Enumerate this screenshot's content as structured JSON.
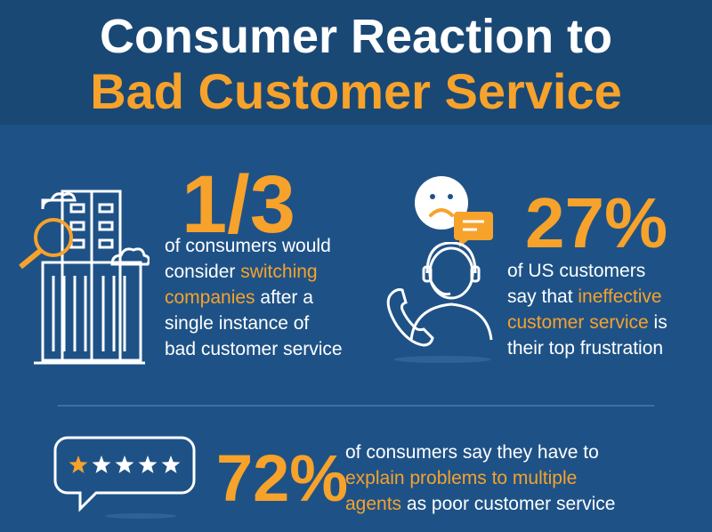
{
  "header": {
    "title_line1": "Consumer Reaction to",
    "title_line2": "Bad Customer Service"
  },
  "stat1": {
    "value": "1/3",
    "line1": "of consumers would",
    "line2_pre": "consider ",
    "line2_hl": "switching",
    "line3_hl": "companies",
    "line3_post": " after a",
    "line4": "single instance of",
    "line5": "bad customer service"
  },
  "stat2": {
    "value": "27%",
    "line1": "of US customers",
    "line2_pre": "say that ",
    "line2_hl": "ineffective",
    "line3_hl": "customer service",
    "line3_post": " is",
    "line4": "their top frustration"
  },
  "stat3": {
    "value": "72%",
    "line1": "of consumers say they have to",
    "line2_hl": "explain problems to multiple",
    "line3_hl": "agents",
    "line3_post": " as poor customer service",
    "rating": {
      "filled": 1,
      "total": 5
    }
  },
  "colors": {
    "background": "#1e5287",
    "header_bg": "#1a4874",
    "accent": "#f7a22b",
    "text": "#ffffff"
  },
  "icons": [
    "buildings-magnifier-icon",
    "sad-face-icon",
    "chat-bubble-icon",
    "headset-agent-icon",
    "rating-bubble-icon"
  ]
}
